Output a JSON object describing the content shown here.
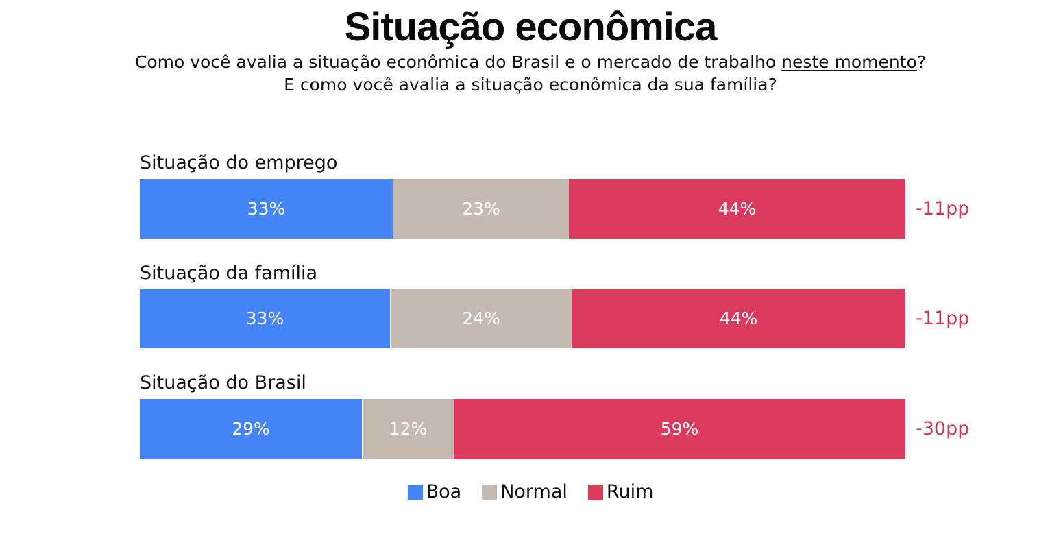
{
  "title": "Situação econômica",
  "subtitle": {
    "line1_before": "Como você avalia a situação econômica do Brasil e o mercado de trabalho ",
    "line1_underlined": "neste momento",
    "line1_after": "?",
    "line2": "E como você avalia a situação econômica da sua família?"
  },
  "colors": {
    "boa": "#4484f4",
    "normal": "#c4bab2",
    "ruim": "#d93a5e",
    "delta": "#c63a57"
  },
  "chart_data": {
    "type": "bar",
    "stacked": true,
    "orientation": "horizontal",
    "categories": [
      "Situação do emprego",
      "Situação da família",
      "Situação do Brasil"
    ],
    "series": [
      {
        "name": "Boa",
        "values": [
          33,
          33,
          29
        ],
        "labels": [
          "33%",
          "33%",
          "29%"
        ]
      },
      {
        "name": "Normal",
        "values": [
          23,
          24,
          12
        ],
        "labels": [
          "23%",
          "24%",
          "12%"
        ]
      },
      {
        "name": "Ruim",
        "values": [
          44,
          44,
          59
        ],
        "labels": [
          "44%",
          "44%",
          "59%"
        ]
      }
    ],
    "net_labels": [
      "-11pp",
      "-11pp",
      "-30pp"
    ],
    "legend_position": "bottom-center"
  }
}
